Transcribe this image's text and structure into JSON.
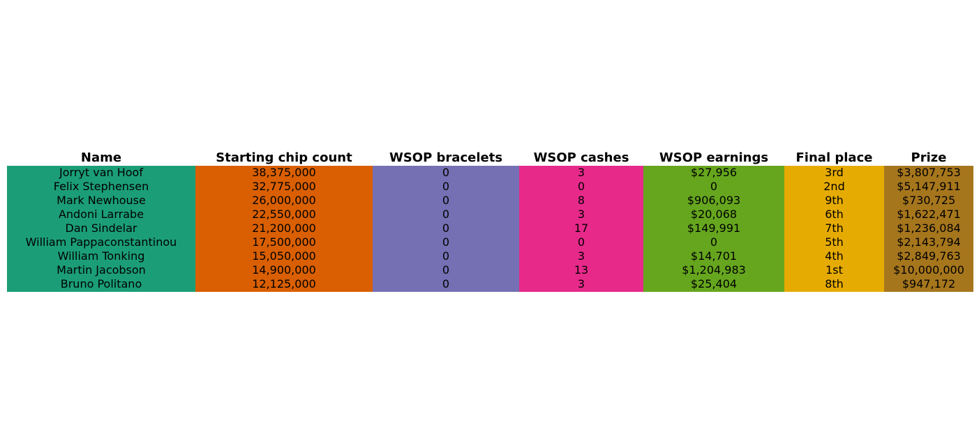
{
  "chart_data": {
    "type": "table",
    "columns": [
      {
        "header": "Name",
        "color": "#1b9e77",
        "values": [
          "Jorryt van Hoof",
          "Felix Stephensen",
          "Mark Newhouse",
          "Andoni Larrabe",
          "Dan Sindelar",
          "William Pappaconstantinou",
          "William Tonking",
          "Martin Jacobson",
          "Bruno Politano"
        ]
      },
      {
        "header": "Starting chip count",
        "color": "#d95f02",
        "values": [
          "38,375,000",
          "32,775,000",
          "26,000,000",
          "22,550,000",
          "21,200,000",
          "17,500,000",
          "15,050,000",
          "14,900,000",
          "12,125,000"
        ]
      },
      {
        "header": "WSOP bracelets",
        "color": "#7570b3",
        "values": [
          "0",
          "0",
          "0",
          "0",
          "0",
          "0",
          "0",
          "0",
          "0"
        ]
      },
      {
        "header": "WSOP cashes",
        "color": "#e7298a",
        "values": [
          "3",
          "0",
          "8",
          "3",
          "17",
          "0",
          "3",
          "13",
          "3"
        ]
      },
      {
        "header": "WSOP earnings",
        "color": "#66a61e",
        "values": [
          "$27,956",
          "0",
          "$906,093",
          "$20,068",
          "$149,991",
          "0",
          "$14,701",
          "$1,204,983",
          "$25,404"
        ]
      },
      {
        "header": "Final place",
        "color": "#e6ab02",
        "values": [
          "3rd",
          "2nd",
          "9th",
          "6th",
          "7th",
          "5th",
          "4th",
          "1st",
          "8th"
        ]
      },
      {
        "header": "Prize",
        "color": "#a6761d",
        "values": [
          "$3,807,753",
          "$5,147,911",
          "$730,725",
          "$1,622,471",
          "$1,236,084",
          "$2,143,794",
          "$2,849,763",
          "$10,000,000",
          "$947,172"
        ]
      }
    ]
  }
}
